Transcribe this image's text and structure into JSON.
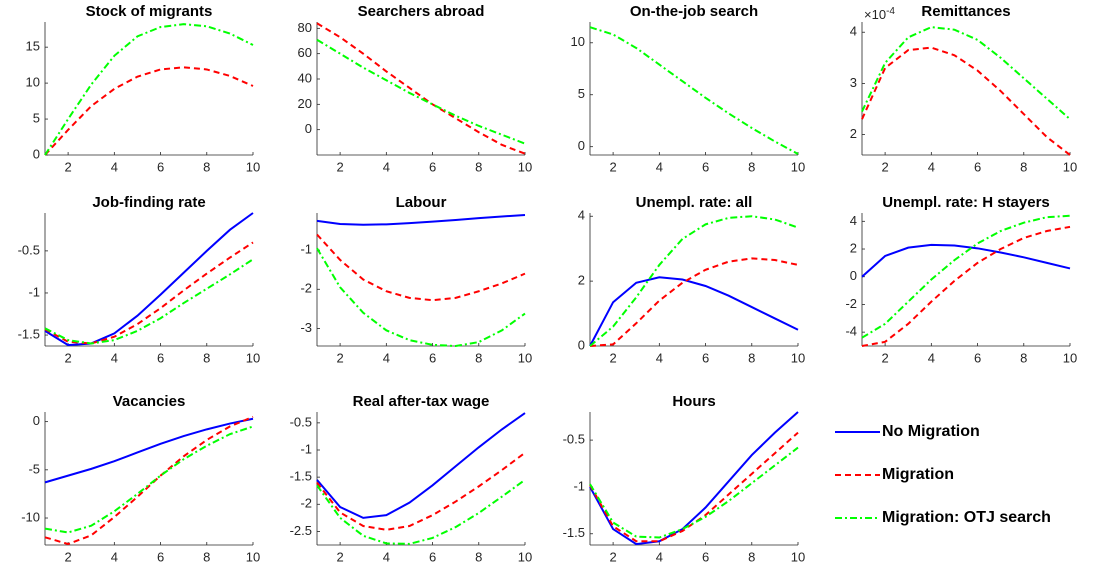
{
  "chart_data": [
    {
      "type": "line",
      "title": "Stock of migrants",
      "x": [
        1,
        2,
        3,
        4,
        5,
        6,
        7,
        8,
        9,
        10
      ],
      "xlim": [
        1,
        10
      ],
      "xticks": [
        2,
        4,
        6,
        8,
        10
      ],
      "ylim": [
        0,
        18.5
      ],
      "yticks": [
        0,
        5,
        10,
        15
      ],
      "series": [
        {
          "name": "Migration",
          "color": "#ff0000",
          "style": "dashed",
          "values": [
            0,
            3.5,
            6.8,
            9.2,
            10.9,
            11.9,
            12.2,
            11.9,
            11.0,
            9.6
          ]
        },
        {
          "name": "Migration: OTJ search",
          "color": "#00ff00",
          "style": "dashdot",
          "values": [
            0,
            5,
            9.8,
            13.8,
            16.5,
            17.8,
            18.2,
            17.9,
            16.9,
            15.3
          ]
        }
      ]
    },
    {
      "type": "line",
      "title": "Searchers abroad",
      "x": [
        1,
        2,
        3,
        4,
        5,
        6,
        7,
        8,
        9,
        10
      ],
      "xlim": [
        1,
        10
      ],
      "xticks": [
        2,
        4,
        6,
        8,
        10
      ],
      "ylim": [
        -20,
        85
      ],
      "yticks": [
        0,
        20,
        40,
        60,
        80
      ],
      "series": [
        {
          "name": "Migration",
          "color": "#ff0000",
          "style": "dashed",
          "values": [
            84,
            73,
            60,
            46,
            33,
            20,
            9,
            -2,
            -12,
            -19
          ]
        },
        {
          "name": "Migration: OTJ search",
          "color": "#00ff00",
          "style": "dashdot",
          "values": [
            71,
            60,
            49,
            39,
            29,
            20,
            11,
            3,
            -4,
            -11
          ]
        }
      ]
    },
    {
      "type": "line",
      "title": "On-the-job search",
      "x": [
        1,
        2,
        3,
        4,
        5,
        6,
        7,
        8,
        9,
        10
      ],
      "xlim": [
        1,
        10
      ],
      "xticks": [
        2,
        4,
        6,
        8,
        10
      ],
      "ylim": [
        -0.8,
        12
      ],
      "yticks": [
        0,
        5,
        10
      ],
      "series": [
        {
          "name": "Migration: OTJ search",
          "color": "#00ff00",
          "style": "dashdot",
          "values": [
            11.5,
            10.8,
            9.5,
            7.9,
            6.3,
            4.7,
            3.2,
            1.8,
            0.5,
            -0.7
          ]
        }
      ]
    },
    {
      "type": "line",
      "title": "Remittances",
      "y_multiplier": {
        "base": "×10",
        "exponent": "-4"
      },
      "x": [
        1,
        2,
        3,
        4,
        5,
        6,
        7,
        8,
        9,
        10
      ],
      "xlim": [
        1,
        10
      ],
      "xticks": [
        2,
        4,
        6,
        8,
        10
      ],
      "ylim": [
        1.6,
        4.2
      ],
      "yticks": [
        2,
        3,
        4
      ],
      "series": [
        {
          "name": "Migration",
          "color": "#ff0000",
          "style": "dashed",
          "values": [
            2.3,
            3.3,
            3.65,
            3.7,
            3.55,
            3.25,
            2.85,
            2.4,
            1.95,
            1.6
          ]
        },
        {
          "name": "Migration: OTJ search",
          "color": "#00ff00",
          "style": "dashdot",
          "values": [
            2.45,
            3.4,
            3.9,
            4.1,
            4.05,
            3.85,
            3.5,
            3.1,
            2.7,
            2.3
          ]
        }
      ]
    },
    {
      "type": "line",
      "title": "Job-finding rate",
      "x": [
        1,
        2,
        3,
        4,
        5,
        6,
        7,
        8,
        9,
        10
      ],
      "xlim": [
        1,
        10
      ],
      "xticks": [
        2,
        4,
        6,
        8,
        10
      ],
      "ylim": [
        -1.63,
        -0.05
      ],
      "yticks": [
        -1.5,
        -1,
        -0.5
      ],
      "series": [
        {
          "name": "No Migration",
          "color": "#0000ff",
          "style": "solid",
          "values": [
            -1.45,
            -1.62,
            -1.6,
            -1.48,
            -1.27,
            -1.02,
            -0.76,
            -0.5,
            -0.25,
            -0.05
          ]
        },
        {
          "name": "Migration",
          "color": "#ff0000",
          "style": "dashed",
          "values": [
            -1.43,
            -1.58,
            -1.6,
            -1.52,
            -1.37,
            -1.18,
            -0.97,
            -0.77,
            -0.58,
            -0.4
          ]
        },
        {
          "name": "Migration: OTJ search",
          "color": "#00ff00",
          "style": "dashdot",
          "values": [
            -1.42,
            -1.56,
            -1.6,
            -1.56,
            -1.45,
            -1.3,
            -1.12,
            -0.95,
            -0.78,
            -0.6
          ]
        }
      ]
    },
    {
      "type": "line",
      "title": "Labour",
      "x": [
        1,
        2,
        3,
        4,
        5,
        6,
        7,
        8,
        9,
        10
      ],
      "xlim": [
        1,
        10
      ],
      "xticks": [
        2,
        4,
        6,
        8,
        10
      ],
      "ylim": [
        -3.45,
        -0.05
      ],
      "yticks": [
        -3,
        -2,
        -1
      ],
      "series": [
        {
          "name": "No Migration",
          "color": "#0000ff",
          "style": "solid",
          "values": [
            -0.25,
            -0.33,
            -0.35,
            -0.34,
            -0.31,
            -0.27,
            -0.23,
            -0.18,
            -0.14,
            -0.1
          ]
        },
        {
          "name": "Migration",
          "color": "#ff0000",
          "style": "dashed",
          "values": [
            -0.6,
            -1.25,
            -1.75,
            -2.05,
            -2.22,
            -2.28,
            -2.22,
            -2.05,
            -1.85,
            -1.6
          ]
        },
        {
          "name": "Migration: OTJ search",
          "color": "#00ff00",
          "style": "dashdot",
          "values": [
            -0.95,
            -1.95,
            -2.6,
            -3.05,
            -3.3,
            -3.42,
            -3.45,
            -3.35,
            -3.05,
            -2.62
          ]
        }
      ]
    },
    {
      "type": "line",
      "title": "Unempl. rate: all",
      "x": [
        1,
        2,
        3,
        4,
        5,
        6,
        7,
        8,
        9,
        10
      ],
      "xlim": [
        1,
        10
      ],
      "xticks": [
        2,
        4,
        6,
        8,
        10
      ],
      "ylim": [
        0,
        4.1
      ],
      "yticks": [
        0,
        2,
        4
      ],
      "series": [
        {
          "name": "No Migration",
          "color": "#0000ff",
          "style": "solid",
          "values": [
            0,
            1.35,
            1.95,
            2.12,
            2.05,
            1.85,
            1.55,
            1.2,
            0.85,
            0.5
          ]
        },
        {
          "name": "Migration",
          "color": "#ff0000",
          "style": "dashed",
          "values": [
            0,
            0.05,
            0.7,
            1.4,
            1.95,
            2.35,
            2.6,
            2.7,
            2.65,
            2.5
          ]
        },
        {
          "name": "Migration: OTJ search",
          "color": "#00ff00",
          "style": "dashdot",
          "values": [
            0,
            0.6,
            1.5,
            2.5,
            3.3,
            3.75,
            3.95,
            4.0,
            3.9,
            3.65
          ]
        }
      ]
    },
    {
      "type": "line",
      "title": "Unempl. rate: H stayers",
      "x": [
        1,
        2,
        3,
        4,
        5,
        6,
        7,
        8,
        9,
        10
      ],
      "xlim": [
        1,
        10
      ],
      "xticks": [
        2,
        4,
        6,
        8,
        10
      ],
      "ylim": [
        -5,
        4.6
      ],
      "yticks": [
        -4,
        -2,
        0,
        2,
        4
      ],
      "series": [
        {
          "name": "No Migration",
          "color": "#0000ff",
          "style": "solid",
          "values": [
            0,
            1.5,
            2.1,
            2.3,
            2.25,
            2.05,
            1.75,
            1.4,
            1.0,
            0.6
          ]
        },
        {
          "name": "Migration",
          "color": "#ff0000",
          "style": "dashed",
          "values": [
            -5,
            -4.7,
            -3.4,
            -1.8,
            -0.3,
            1.0,
            2.0,
            2.8,
            3.3,
            3.6
          ]
        },
        {
          "name": "Migration: OTJ search",
          "color": "#00ff00",
          "style": "dashdot",
          "values": [
            -4.4,
            -3.4,
            -1.8,
            -0.2,
            1.2,
            2.4,
            3.3,
            3.9,
            4.3,
            4.4
          ]
        }
      ]
    },
    {
      "type": "line",
      "title": "Vacancies",
      "x": [
        1,
        2,
        3,
        4,
        5,
        6,
        7,
        8,
        9,
        10
      ],
      "xlim": [
        1,
        10
      ],
      "xticks": [
        2,
        4,
        6,
        8,
        10
      ],
      "ylim": [
        -12.8,
        1
      ],
      "yticks": [
        -10,
        -5,
        0
      ],
      "series": [
        {
          "name": "No Migration",
          "color": "#0000ff",
          "style": "solid",
          "values": [
            -6.3,
            -5.6,
            -4.9,
            -4.1,
            -3.2,
            -2.3,
            -1.5,
            -0.8,
            -0.2,
            0.3
          ]
        },
        {
          "name": "Migration",
          "color": "#ff0000",
          "style": "dashed",
          "values": [
            -12,
            -12.7,
            -11.8,
            -9.9,
            -7.8,
            -5.6,
            -3.6,
            -1.9,
            -0.5,
            0.5
          ]
        },
        {
          "name": "Migration: OTJ search",
          "color": "#00ff00",
          "style": "dashdot",
          "values": [
            -11.1,
            -11.5,
            -10.8,
            -9.3,
            -7.5,
            -5.6,
            -3.9,
            -2.5,
            -1.3,
            -0.5
          ]
        }
      ]
    },
    {
      "type": "line",
      "title": "Real after-tax wage",
      "x": [
        1,
        2,
        3,
        4,
        5,
        6,
        7,
        8,
        9,
        10
      ],
      "xlim": [
        1,
        10
      ],
      "xticks": [
        2,
        4,
        6,
        8,
        10
      ],
      "ylim": [
        -2.75,
        -0.3
      ],
      "yticks": [
        -2.5,
        -2,
        -1.5,
        -1,
        -0.5
      ],
      "series": [
        {
          "name": "No Migration",
          "color": "#0000ff",
          "style": "solid",
          "values": [
            -1.55,
            -2.05,
            -2.25,
            -2.2,
            -1.97,
            -1.65,
            -1.3,
            -0.95,
            -0.62,
            -0.32
          ]
        },
        {
          "name": "Migration",
          "color": "#ff0000",
          "style": "dashed",
          "values": [
            -1.6,
            -2.15,
            -2.4,
            -2.47,
            -2.4,
            -2.2,
            -1.95,
            -1.67,
            -1.37,
            -1.05
          ]
        },
        {
          "name": "Migration: OTJ search",
          "color": "#00ff00",
          "style": "dashdot",
          "values": [
            -1.65,
            -2.25,
            -2.58,
            -2.72,
            -2.73,
            -2.62,
            -2.42,
            -2.16,
            -1.86,
            -1.55
          ]
        }
      ]
    },
    {
      "type": "line",
      "title": "Hours",
      "x": [
        1,
        2,
        3,
        4,
        5,
        6,
        7,
        8,
        9,
        10
      ],
      "xlim": [
        1,
        10
      ],
      "xticks": [
        2,
        4,
        6,
        8,
        10
      ],
      "ylim": [
        -1.62,
        -0.2
      ],
      "yticks": [
        -1.5,
        -1,
        -0.5
      ],
      "series": [
        {
          "name": "No Migration",
          "color": "#0000ff",
          "style": "solid",
          "values": [
            -1.0,
            -1.45,
            -1.61,
            -1.58,
            -1.45,
            -1.22,
            -0.94,
            -0.66,
            -0.42,
            -0.2
          ]
        },
        {
          "name": "Migration",
          "color": "#ff0000",
          "style": "dashed",
          "values": [
            -0.98,
            -1.42,
            -1.58,
            -1.58,
            -1.47,
            -1.3,
            -1.08,
            -0.86,
            -0.64,
            -0.42
          ]
        },
        {
          "name": "Migration: OTJ search",
          "color": "#00ff00",
          "style": "dashdot",
          "values": [
            -0.97,
            -1.38,
            -1.53,
            -1.54,
            -1.45,
            -1.32,
            -1.15,
            -0.96,
            -0.77,
            -0.58
          ]
        }
      ]
    }
  ]
}
